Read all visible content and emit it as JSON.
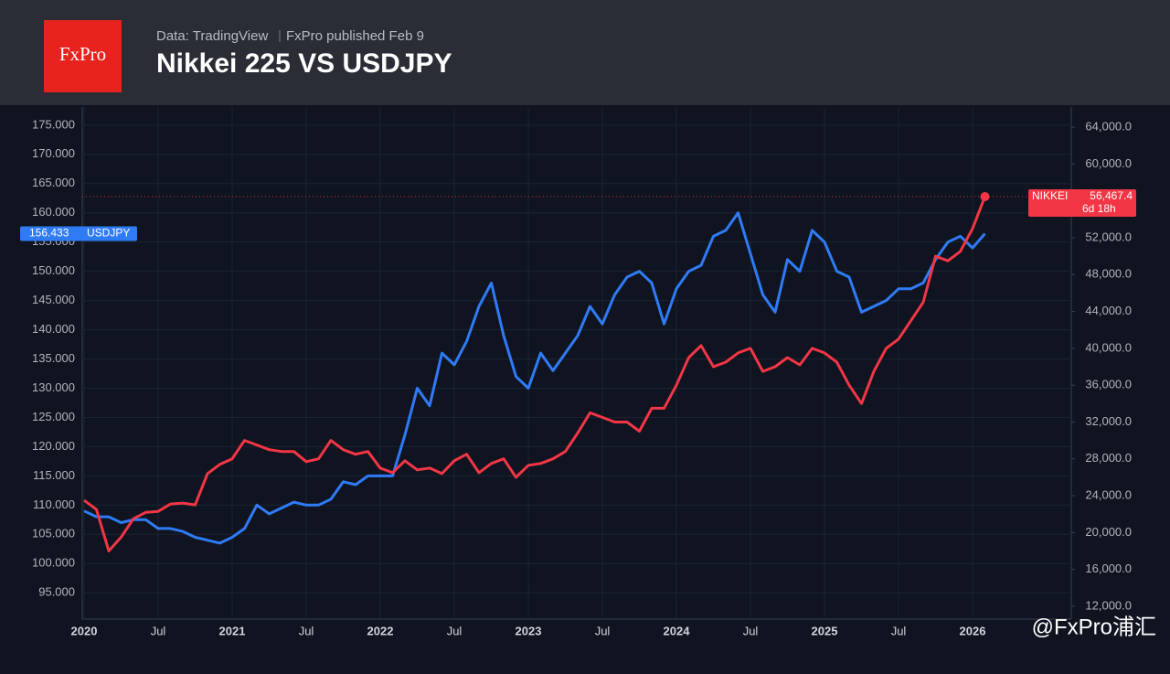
{
  "header": {
    "logo": "FxPro",
    "source": "Data: TradingView",
    "published": "FxPro published Feb 9",
    "watermark": "@FxPro浦汇"
  },
  "chart_data": {
    "type": "line",
    "title": "Nikkei 225 VS USDJPY",
    "x": [
      "2020-01",
      "2020-02",
      "2020-03",
      "2020-04",
      "2020-05",
      "2020-06",
      "2020-07",
      "2020-08",
      "2020-09",
      "2020-10",
      "2020-11",
      "2020-12",
      "2021-01",
      "2021-02",
      "2021-03",
      "2021-04",
      "2021-05",
      "2021-06",
      "2021-07",
      "2021-08",
      "2021-09",
      "2021-10",
      "2021-11",
      "2021-12",
      "2022-01",
      "2022-02",
      "2022-03",
      "2022-04",
      "2022-05",
      "2022-06",
      "2022-07",
      "2022-08",
      "2022-09",
      "2022-10",
      "2022-11",
      "2022-12",
      "2023-01",
      "2023-02",
      "2023-03",
      "2023-04",
      "2023-05",
      "2023-06",
      "2023-07",
      "2023-08",
      "2023-09",
      "2023-10",
      "2023-11",
      "2023-12",
      "2024-01",
      "2024-02",
      "2024-03",
      "2024-04",
      "2024-05",
      "2024-06",
      "2024-07",
      "2024-08",
      "2024-09",
      "2024-10",
      "2024-11",
      "2024-12",
      "2025-01",
      "2025-02",
      "2025-03",
      "2025-04",
      "2025-05",
      "2025-06",
      "2025-07",
      "2025-08",
      "2025-09",
      "2025-10",
      "2025-11",
      "2025-12",
      "2026-01",
      "2026-02"
    ],
    "series": [
      {
        "name": "USDJPY",
        "color": "#2f7bf5",
        "axis": "y",
        "values": [
          109,
          108,
          108,
          107,
          107.5,
          107.5,
          106,
          106,
          105.5,
          104.5,
          104,
          103.5,
          104.5,
          106,
          110,
          108.5,
          109.5,
          110.5,
          110,
          110,
          111,
          114,
          113.5,
          115,
          115,
          115,
          122,
          130,
          127,
          136,
          134,
          138,
          144,
          148,
          139,
          132,
          130,
          136,
          133,
          136,
          139,
          144,
          141,
          146,
          149,
          150,
          148,
          141,
          147,
          150,
          151,
          156,
          157,
          160,
          153,
          146,
          143,
          152,
          150,
          157,
          155,
          150,
          149,
          143,
          144,
          145,
          147,
          147,
          148,
          152,
          155,
          156,
          154,
          156.433
        ],
        "value_labels": [
          null,
          null,
          null,
          null,
          null,
          null,
          null,
          null,
          null,
          null,
          null,
          null,
          null,
          null,
          null,
          null,
          null,
          null,
          null,
          null,
          null,
          null,
          null,
          null,
          null,
          null,
          null,
          null,
          null,
          null,
          null,
          null,
          null,
          null,
          null,
          null,
          null,
          null,
          null,
          null,
          null,
          null,
          null,
          null,
          null,
          null,
          null,
          null,
          null,
          null,
          null,
          null,
          null,
          null,
          null,
          null,
          null,
          null,
          null,
          null,
          null,
          null,
          null,
          null,
          null,
          null,
          null,
          null,
          null,
          null,
          null,
          null,
          null,
          "156.433"
        ]
      },
      {
        "name": "NIKKEI",
        "color": "#f23645",
        "axis": "y2",
        "values": [
          23500,
          22500,
          18000,
          19500,
          21500,
          22200,
          22300,
          23100,
          23200,
          23000,
          26400,
          27400,
          28000,
          30000,
          29500,
          29000,
          28800,
          28800,
          27700,
          28000,
          30000,
          29000,
          28500,
          28800,
          27000,
          26500,
          27800,
          26800,
          27000,
          26400,
          27800,
          28500,
          26500,
          27500,
          28000,
          26000,
          27300,
          27500,
          28000,
          28800,
          30800,
          33000,
          32500,
          32000,
          32000,
          31000,
          33500,
          33500,
          36000,
          39000,
          40300,
          38000,
          38500,
          39500,
          40000,
          37500,
          38000,
          39000,
          38200,
          40000,
          39500,
          38500,
          36000,
          34000,
          37500,
          40000,
          41000,
          43000,
          45000,
          50000,
          49500,
          50500,
          53000,
          56467.4
        ],
        "value_labels": [
          null,
          null,
          null,
          null,
          null,
          null,
          null,
          null,
          null,
          null,
          null,
          null,
          null,
          null,
          null,
          null,
          null,
          null,
          null,
          null,
          null,
          null,
          null,
          null,
          null,
          null,
          null,
          null,
          null,
          null,
          null,
          null,
          null,
          null,
          null,
          null,
          null,
          null,
          null,
          null,
          null,
          null,
          null,
          null,
          null,
          null,
          null,
          null,
          null,
          null,
          null,
          null,
          null,
          null,
          null,
          null,
          null,
          null,
          null,
          null,
          null,
          null,
          null,
          null,
          null,
          null,
          null,
          null,
          null,
          null,
          null,
          null,
          null,
          "56,467.4"
        ]
      }
    ],
    "annotations": [
      "6d 18h"
    ],
    "xlim": [
      "2020-01",
      "2026-09"
    ],
    "xticks": [
      {
        "value": "2020-01",
        "label": "2020"
      },
      {
        "value": "2020-07",
        "label": "Jul"
      },
      {
        "value": "2021-01",
        "label": "2021"
      },
      {
        "value": "2021-07",
        "label": "Jul"
      },
      {
        "value": "2022-01",
        "label": "2022"
      },
      {
        "value": "2022-07",
        "label": "Jul"
      },
      {
        "value": "2023-01",
        "label": "2023"
      },
      {
        "value": "2023-07",
        "label": "Jul"
      },
      {
        "value": "2024-01",
        "label": "2024"
      },
      {
        "value": "2024-07",
        "label": "Jul"
      },
      {
        "value": "2025-01",
        "label": "2025"
      },
      {
        "value": "2025-07",
        "label": "Jul"
      },
      {
        "value": "2026-01",
        "label": "2026"
      }
    ],
    "ylim": [
      90.5,
      178.1
    ],
    "yticks": [
      {
        "value": 95,
        "label": "95.000"
      },
      {
        "value": 100,
        "label": "100.000"
      },
      {
        "value": 105,
        "label": "105.000"
      },
      {
        "value": 110,
        "label": "110.000"
      },
      {
        "value": 115,
        "label": "115.000"
      },
      {
        "value": 120,
        "label": "120.000"
      },
      {
        "value": 125,
        "label": "125.000"
      },
      {
        "value": 130,
        "label": "130.000"
      },
      {
        "value": 135,
        "label": "135.000"
      },
      {
        "value": 140,
        "label": "140.000"
      },
      {
        "value": 145,
        "label": "145.000"
      },
      {
        "value": 150,
        "label": "150.000"
      },
      {
        "value": 155,
        "label": "155.000"
      },
      {
        "value": 160,
        "label": "160.000"
      },
      {
        "value": 165,
        "label": "165.000"
      },
      {
        "value": 170,
        "label": "170.000"
      },
      {
        "value": 175,
        "label": "175.000"
      }
    ],
    "y2lim": [
      10600,
      66200
    ],
    "y2ticks": [
      {
        "value": 12000,
        "label": "12,000.0"
      },
      {
        "value": 16000,
        "label": "16,000.0"
      },
      {
        "value": 20000,
        "label": "20,000.0"
      },
      {
        "value": 24000,
        "label": "24,000.0"
      },
      {
        "value": 28000,
        "label": "28,000.0"
      },
      {
        "value": 32000,
        "label": "32,000.0"
      },
      {
        "value": 36000,
        "label": "36,000.0"
      },
      {
        "value": 40000,
        "label": "40,000.0"
      },
      {
        "value": 44000,
        "label": "44,000.0"
      },
      {
        "value": 48000,
        "label": "48,000.0"
      },
      {
        "value": 52000,
        "label": "52,000.0"
      },
      {
        "value": 56000,
        "label": "56,000.0"
      },
      {
        "value": 60000,
        "label": "60,000.0"
      },
      {
        "value": 64000,
        "label": "64,000.0"
      }
    ],
    "grid": true
  }
}
